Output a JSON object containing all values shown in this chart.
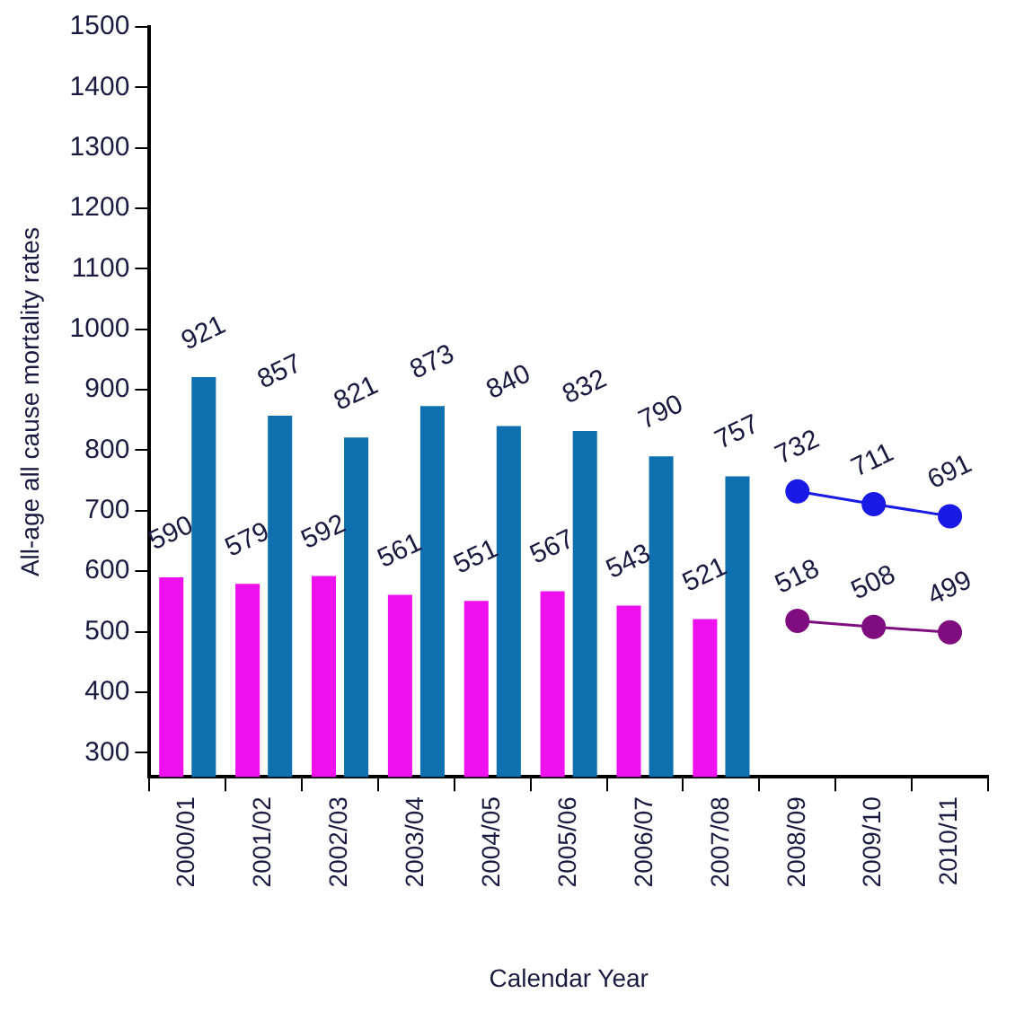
{
  "chart_data": {
    "type": "bar",
    "xlabel": "Calendar Year",
    "ylabel": "All-age all cause mortality rates",
    "categories": [
      "2000/01",
      "2001/02",
      "2002/03",
      "2003/04",
      "2004/05",
      "2005/06",
      "2006/07",
      "2007/08",
      "2008/09",
      "2009/10",
      "2010/11"
    ],
    "series": [
      {
        "color": "#ee11ee",
        "values": [
          590,
          579,
          592,
          561,
          551,
          567,
          543,
          521,
          null,
          null,
          null
        ]
      },
      {
        "color": "#0f70b0",
        "values": [
          921,
          857,
          821,
          873,
          840,
          832,
          790,
          757,
          null,
          null,
          null
        ]
      },
      {
        "type": "line",
        "color": "#1a1ae6",
        "values": [
          null,
          null,
          null,
          null,
          null,
          null,
          null,
          null,
          732,
          711,
          691
        ]
      },
      {
        "type": "line",
        "color": "#800d80",
        "values": [
          null,
          null,
          null,
          null,
          null,
          null,
          null,
          null,
          518,
          508,
          499
        ]
      }
    ],
    "ylim": [
      260,
      1500
    ],
    "yticks": [
      300,
      400,
      500,
      600,
      700,
      800,
      900,
      1000,
      1100,
      1200,
      1300,
      1400,
      1500
    ],
    "data_labels": true,
    "marker": "circle",
    "line_style": "solid",
    "grid": false,
    "legend": false
  }
}
